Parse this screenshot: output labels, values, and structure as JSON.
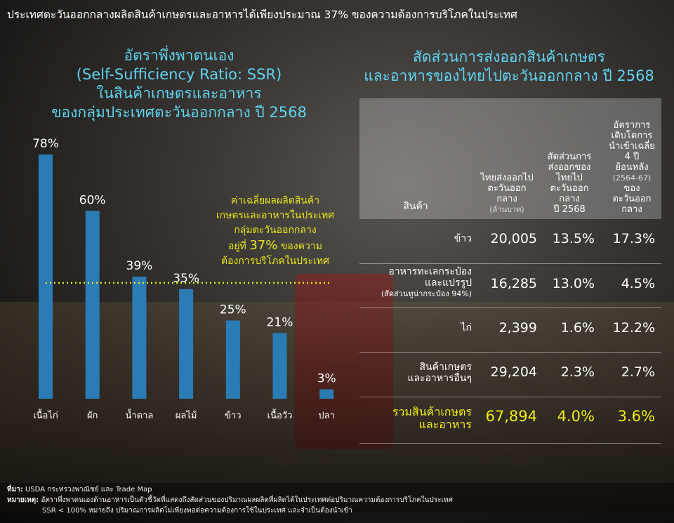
{
  "headline": "ประเทศตะวันออกกลางผลิตสินค้าเกษตรและอาหารได้เพียงประมาณ 37% ของความต้องการบริโภคในประเทศ",
  "left_title": [
    "อัตราพึ่งพาตนเอง",
    "(Self-Sufficiency Ratio: SSR)",
    "ในสินค้าเกษตรและอาหาร",
    "ของกลุ่มประเทศตะวันออกกลาง ปี 2568"
  ],
  "right_title": [
    "สัดส่วนการส่งออกสินค้าเกษตร",
    "และอาหารของไทยไปตะวันออกกลาง ปี 2568"
  ],
  "note": {
    "line1": "ค่าเฉลี่ยผลผลิตสินค้า",
    "line2": "เกษตรและอาหารในประเทศ",
    "line3": "กลุ่มตะวันออกกลาง",
    "pre": "อยู่ที่",
    "value": "37%",
    "post": "ของความ",
    "line5": "ต้องการบริโภคในประเทศ"
  },
  "chart_data": {
    "type": "bar",
    "categories": [
      "เนื้อไก่",
      "ผัก",
      "น้ำตาล",
      "ผลไม้",
      "ข้าว",
      "เนื้อวัว",
      "ปลา"
    ],
    "values": [
      78,
      60,
      39,
      35,
      25,
      21,
      3
    ],
    "labels": [
      "78%",
      "60%",
      "39%",
      "35%",
      "25%",
      "21%",
      "3%"
    ],
    "reference_line": 37,
    "ylim": [
      0,
      100
    ],
    "bar_color": "#2b7bb5",
    "reference_color": "#e6e619"
  },
  "table": {
    "headers": {
      "product": "สินค้า",
      "col1": [
        "ไทยส่งออกไป",
        "ตะวันออก",
        "กลาง"
      ],
      "col1_unit": "(ล้านบาท)",
      "col2": [
        "สัดส่วนการ",
        "ส่งออกของ",
        "ไทยไป",
        "ตะวันออก",
        "กลาง",
        "ปี 2568"
      ],
      "col3a": [
        "อัตราการ",
        "เติบโตการ",
        "นำเข้าเฉลี่ย",
        "4 ปี",
        "ย้อนหลัง"
      ],
      "col3_years": "(2564-67)",
      "col3b": [
        "ของ",
        "ตะวันออก",
        "กลาง"
      ]
    },
    "rows": [
      {
        "label": "ข้าว",
        "v1": "20,005",
        "v2": "13.5%",
        "v3": "17.3%"
      },
      {
        "label": "อาหารทะเลกระป๋อง",
        "label2": "และแปรรูป",
        "sub": "(สัดส่วนทูน่ากระป๋อง 94%)",
        "v1": "16,285",
        "v2": "13.0%",
        "v3": "4.5%"
      },
      {
        "label": "ไก่",
        "v1": "2,399",
        "v2": "1.6%",
        "v3": "12.2%"
      },
      {
        "label": "สินค้าเกษตร",
        "label2": "และอาหารอื่นๆ",
        "v1": "29,204",
        "v2": "2.3%",
        "v3": "2.7%"
      },
      {
        "label": "รวมสินค้าเกษตร",
        "label2": "และอาหาร",
        "v1": "67,894",
        "v2": "4.0%",
        "v3": "3.6%"
      }
    ]
  },
  "footer": {
    "source_label": "ที่มา:",
    "source": "USDA กระทรวงพาณิชย์ และ Trade Map",
    "note_label": "หมายเหตุ:",
    "note1": "อัตราพึ่งพาตนเองด้านอาหารเป็นตัวชี้วัดที่แสดงถึงสัดส่วนของปริมาณผลผลิตที่ผลิตได้ในประเทศต่อปริมาณความต้องการบริโภคในประเทศ",
    "note2": "SSR < 100% หมายถึง ปริมาณการผลิตไม่เพียงพอต่อความต้องการใช้ในประเทศ และจำเป็นต้องนำเข้า"
  }
}
